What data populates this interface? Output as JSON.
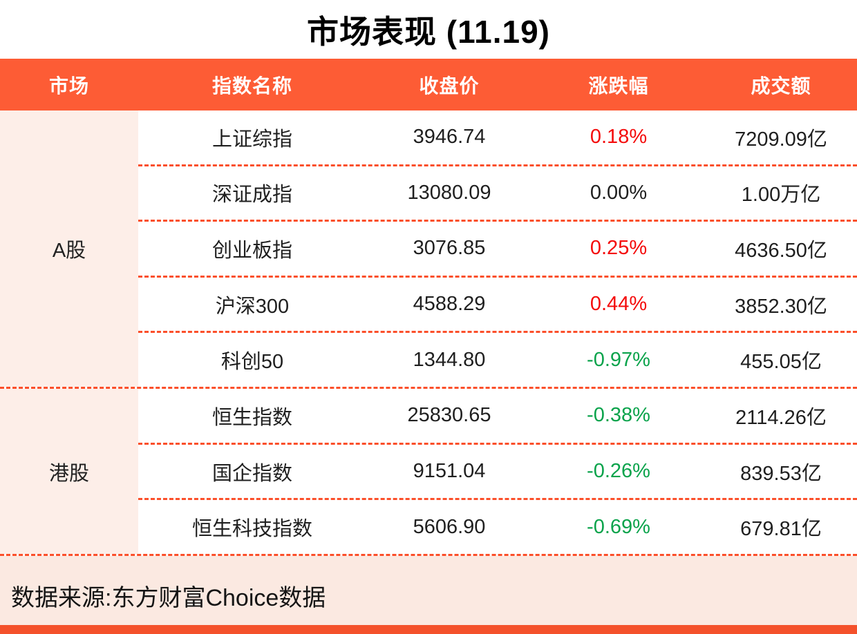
{
  "title": "市场表现 (11.19)",
  "colors": {
    "accent_orange": "#fd5c35",
    "divider_orange": "#fb4f2a",
    "positive_red": "#f40b0b",
    "negative_green": "#0aa34b",
    "panel_pink": "#fdeee8",
    "footer_pink": "#fbe9e1"
  },
  "table": {
    "headers": {
      "market": "市场",
      "index_name": "指数名称",
      "close": "收盘价",
      "change": "涨跌幅",
      "turnover": "成交额"
    },
    "groups": [
      {
        "market": "A股",
        "rows": [
          {
            "name": "上证综指",
            "close": "3946.74",
            "change": "0.18%",
            "direction": "up",
            "turnover": "7209.09亿"
          },
          {
            "name": "深证成指",
            "close": "13080.09",
            "change": "0.00%",
            "direction": "flat",
            "turnover": "1.00万亿"
          },
          {
            "name": "创业板指",
            "close": "3076.85",
            "change": "0.25%",
            "direction": "up",
            "turnover": "4636.50亿"
          },
          {
            "name": "沪深300",
            "close": "4588.29",
            "change": "0.44%",
            "direction": "up",
            "turnover": "3852.30亿"
          },
          {
            "name": "科创50",
            "close": "1344.80",
            "change": "-0.97%",
            "direction": "down",
            "turnover": "455.05亿"
          }
        ]
      },
      {
        "market": "港股",
        "rows": [
          {
            "name": "恒生指数",
            "close": "25830.65",
            "change": "-0.38%",
            "direction": "down",
            "turnover": "2114.26亿"
          },
          {
            "name": "国企指数",
            "close": "9151.04",
            "change": "-0.26%",
            "direction": "down",
            "turnover": "839.53亿"
          },
          {
            "name": "恒生科技指数",
            "close": "5606.90",
            "change": "-0.69%",
            "direction": "down",
            "turnover": "679.81亿"
          }
        ]
      }
    ]
  },
  "footer": {
    "source": "数据来源:东方财富Choice数据"
  },
  "chart_data": {
    "type": "table",
    "title": "市场表现 (11.19)",
    "columns": [
      "市场",
      "指数名称",
      "收盘价",
      "涨跌幅",
      "成交额"
    ],
    "rows": [
      [
        "A股",
        "上证综指",
        "3946.74",
        "0.18%",
        "7209.09亿"
      ],
      [
        "A股",
        "深证成指",
        "13080.09",
        "0.00%",
        "1.00万亿"
      ],
      [
        "A股",
        "创业板指",
        "3076.85",
        "0.25%",
        "4636.50亿"
      ],
      [
        "A股",
        "沪深300",
        "4588.29",
        "0.44%",
        "3852.30亿"
      ],
      [
        "A股",
        "科创50",
        "1344.80",
        "-0.97%",
        "455.05亿"
      ],
      [
        "港股",
        "恒生指数",
        "25830.65",
        "-0.38%",
        "2114.26亿"
      ],
      [
        "港股",
        "国企指数",
        "9151.04",
        "-0.26%",
        "839.53亿"
      ],
      [
        "港股",
        "恒生科技指数",
        "5606.90",
        "-0.69%",
        "679.81亿"
      ]
    ],
    "source": "数据来源:东方财富Choice数据"
  }
}
